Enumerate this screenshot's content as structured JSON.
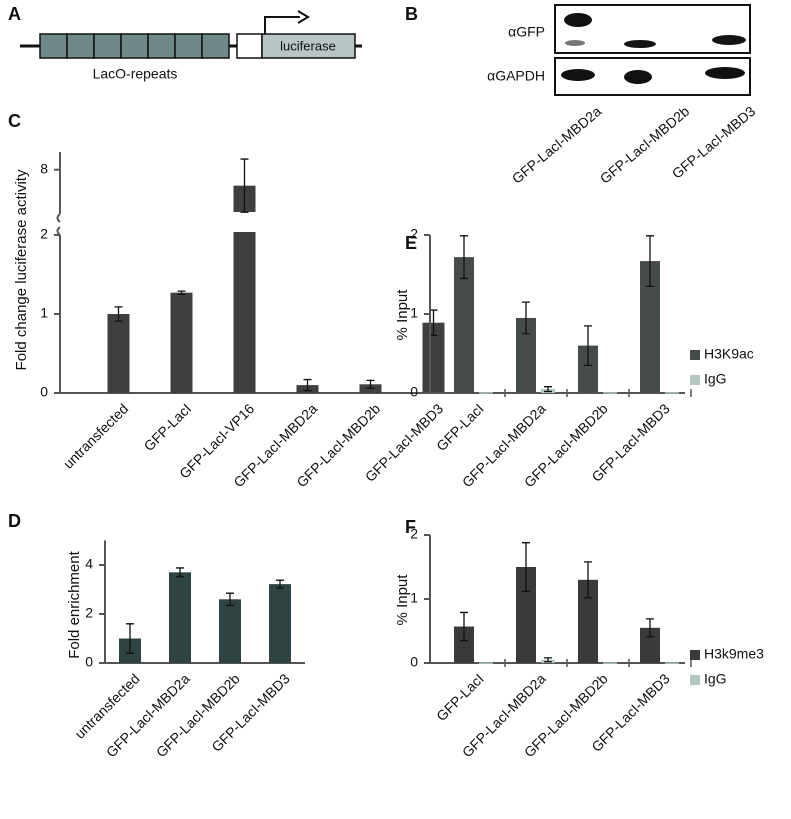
{
  "diagram": {
    "label": "A",
    "repeat_label": "LacO-repeats",
    "reporter_label": "luciferase"
  },
  "blot": {
    "label": "B",
    "rows": [
      "αGFP",
      "αGAPDH"
    ],
    "lanes": [
      "GFP-LacI-MBD2a",
      "GFP-LacI-MBD2b",
      "GFP-LacI-MBD3"
    ]
  },
  "chart_data": [
    {
      "type": "bar",
      "label": "C",
      "ylabel": "Fold change luciferase activity",
      "categories": [
        "untransfected",
        "GFP-LacI",
        "GFP-LacI-VP16",
        "GFP-LacI-MBD2a",
        "GFP-LacI-MBD2b",
        "GFP-LacI-MBD3"
      ],
      "values": [
        1.0,
        1.27,
        7.1,
        0.1,
        0.11,
        0.89
      ],
      "errors": [
        0.09,
        0.02,
        1.5,
        0.07,
        0.05,
        0.16
      ],
      "color": "#3f3f3f",
      "ylim": [
        0,
        2
      ],
      "yticks": [
        0,
        1,
        2
      ],
      "y_break": {
        "ylim": [
          5.5,
          9
        ],
        "yticks": [
          8
        ]
      }
    },
    {
      "type": "grouped_bar",
      "label": "E",
      "ylabel": "% Input",
      "categories": [
        "GFP-LacI",
        "GFP-LacI-MBD2a",
        "GFP-LacI-MBD2b",
        "GFP-LacI-MBD3"
      ],
      "series": [
        {
          "name": "H3K9ac",
          "color": "#464c4c",
          "values": [
            1.72,
            0.95,
            0.6,
            1.67
          ],
          "errors": [
            0.27,
            0.2,
            0.25,
            0.32
          ]
        },
        {
          "name": "IgG",
          "color": "#b3c6c2",
          "values": [
            0.01,
            0.05,
            0.01,
            0.01
          ],
          "errors": [
            0,
            0.03,
            0,
            0
          ]
        }
      ],
      "ylim": [
        0,
        2
      ],
      "yticks": [
        0,
        1,
        2
      ],
      "legend": "right"
    },
    {
      "type": "bar",
      "label": "D",
      "ylabel": "Fold enrichment",
      "categories": [
        "untransfected",
        "GFP-LacI-MBD2a",
        "GFP-LacI-MBD2b",
        "GFP-LacI-MBD3"
      ],
      "values": [
        1.0,
        3.7,
        2.6,
        3.22
      ],
      "errors": [
        0.6,
        0.18,
        0.25,
        0.16
      ],
      "color": "#2f4343",
      "ylim": [
        0,
        5
      ],
      "yticks": [
        0,
        2,
        4
      ]
    },
    {
      "type": "grouped_bar",
      "label": "F",
      "ylabel": "% Input",
      "categories": [
        "GFP-LacI",
        "GFP-LacI-MBD2a",
        "GFP-LacI-MBD2b",
        "GFP-LacI-MBD3"
      ],
      "series": [
        {
          "name": "H3k9me3",
          "color": "#3a3a3a",
          "values": [
            0.57,
            1.5,
            1.3,
            0.55
          ],
          "errors": [
            0.22,
            0.38,
            0.28,
            0.14
          ]
        },
        {
          "name": "IgG",
          "color": "#b3c6c2",
          "values": [
            0.01,
            0.05,
            0.01,
            0.01
          ],
          "errors": [
            0,
            0.03,
            0,
            0
          ]
        }
      ],
      "ylim": [
        0,
        2
      ],
      "yticks": [
        0,
        1,
        2
      ],
      "legend": "right"
    }
  ]
}
